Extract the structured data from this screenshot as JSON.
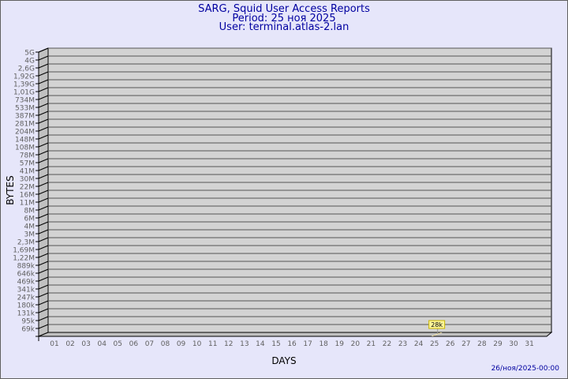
{
  "header": {
    "title": "SARG, Squid User Access Reports",
    "period": "Period: 25 ноя 2025",
    "user": "User: terminal.atlas-2.lan"
  },
  "footer": {
    "timestamp": "26/ноя/2025-00:00"
  },
  "chart_data": {
    "type": "bar",
    "xlabel": "DAYS",
    "ylabel": "BYTES",
    "y_scale": "log",
    "y_tick_labels": [
      "5G",
      "4G",
      "2,6G",
      "1,92G",
      "1,39G",
      "1,01G",
      "734M",
      "533M",
      "387M",
      "281M",
      "204M",
      "148M",
      "108M",
      "78M",
      "57M",
      "41M",
      "30M",
      "22M",
      "16M",
      "11M",
      "8M",
      "6M",
      "4M",
      "3M",
      "2,3M",
      "1,69M",
      "1,22M",
      "889k",
      "646k",
      "469k",
      "341k",
      "247k",
      "180k",
      "131k",
      "95k",
      "69k"
    ],
    "categories": [
      "01",
      "02",
      "03",
      "04",
      "05",
      "06",
      "07",
      "08",
      "09",
      "10",
      "11",
      "12",
      "13",
      "14",
      "15",
      "16",
      "17",
      "18",
      "19",
      "20",
      "21",
      "22",
      "23",
      "24",
      "25",
      "26",
      "27",
      "28",
      "29",
      "30",
      "31"
    ],
    "values": [
      0,
      0,
      0,
      0,
      0,
      0,
      0,
      0,
      0,
      0,
      0,
      0,
      0,
      0,
      0,
      0,
      0,
      0,
      0,
      0,
      0,
      0,
      0,
      0,
      28000,
      0,
      0,
      0,
      0,
      0,
      0
    ],
    "data_labels": {
      "25": "28k"
    },
    "colors": {
      "wall": "#d3d3d3",
      "side": "#c0c0c0",
      "bar": "#ffeb9c",
      "label_bg": "#fff799",
      "label_border": "#c8b400",
      "text": "#606060",
      "title": "#0000a0"
    },
    "grid": true
  }
}
